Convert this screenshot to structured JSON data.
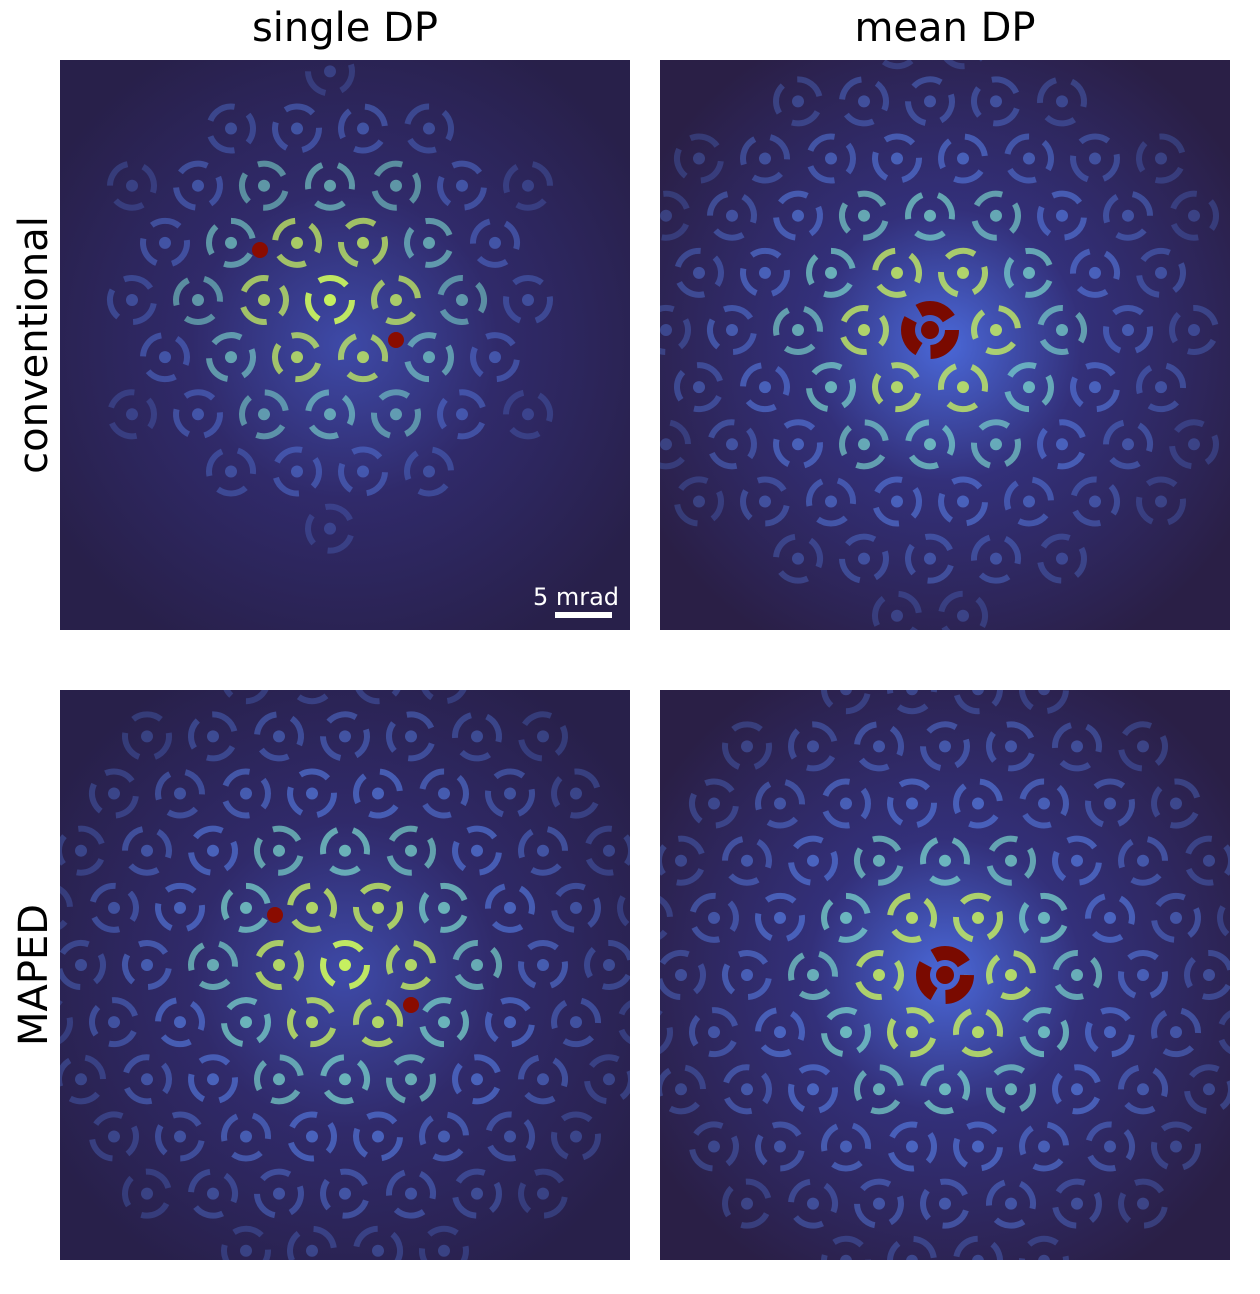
{
  "column_titles": [
    "single DP",
    "mean DP"
  ],
  "row_labels": [
    "conventional",
    "MAPED"
  ],
  "scale_bar": {
    "label": "5 mrad"
  }
}
